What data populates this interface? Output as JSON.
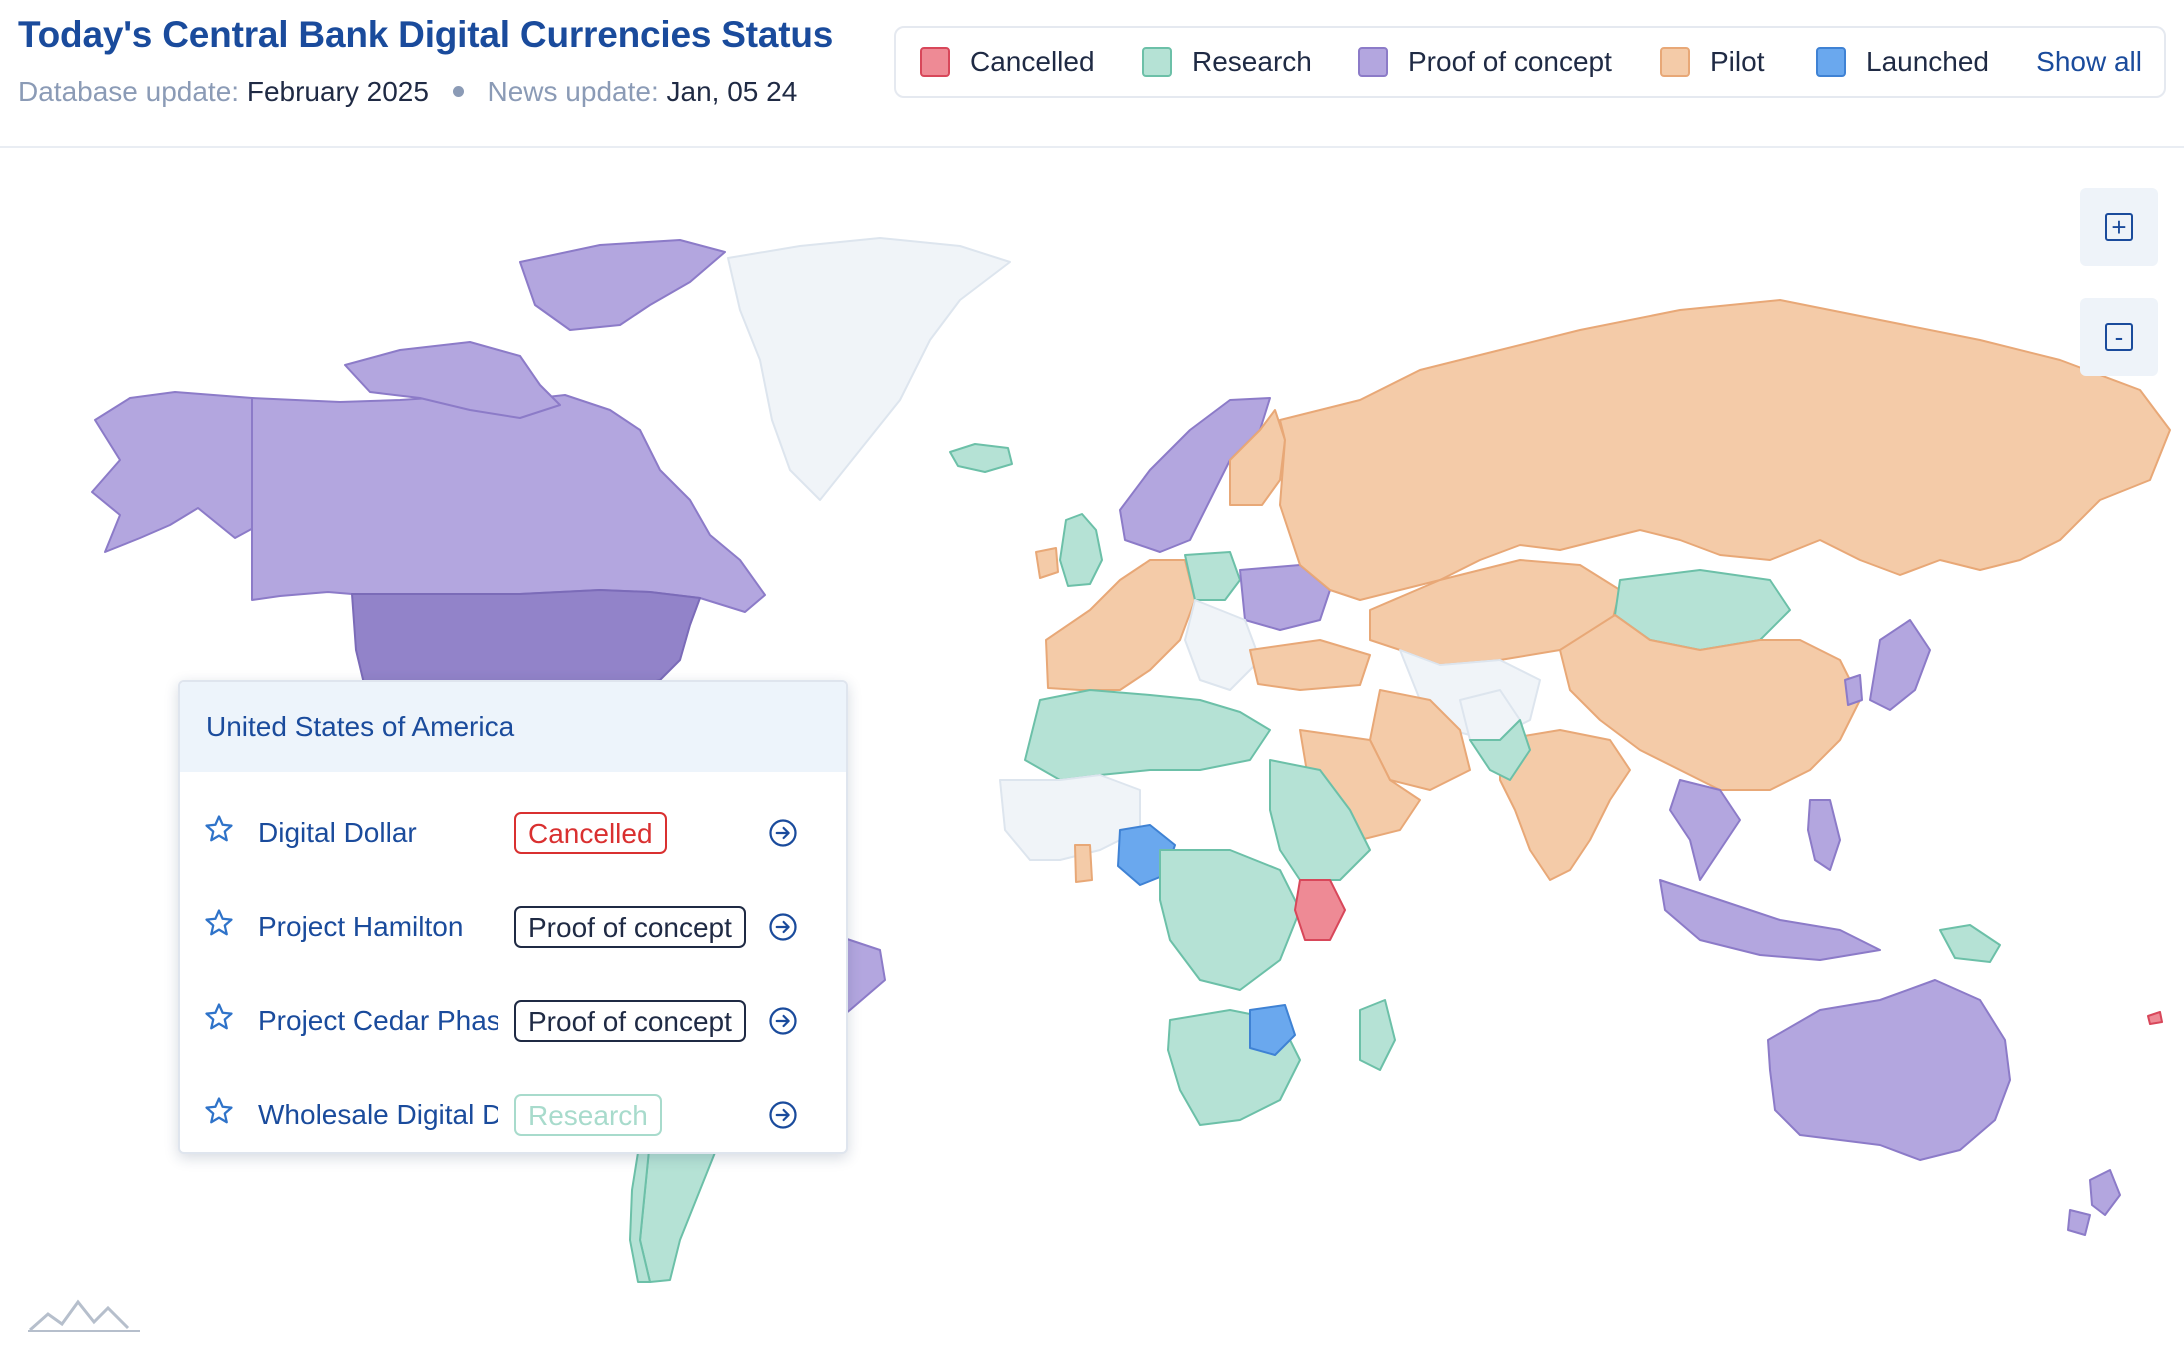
{
  "header": {
    "title": "Today's Central Bank Digital Currencies Status",
    "db_update_label": "Database update:",
    "db_update_value": "February 2025",
    "news_update_label": "News update:",
    "news_update_value": "Jan, 05 24"
  },
  "legend": {
    "items": [
      {
        "label": "Cancelled",
        "fill": "#ee8a95",
        "stroke": "#d8475a"
      },
      {
        "label": "Research",
        "fill": "#b5e2d5",
        "stroke": "#6cc0a8"
      },
      {
        "label": "Proof of concept",
        "fill": "#b3a6df",
        "stroke": "#8c7bc8"
      },
      {
        "label": "Pilot",
        "fill": "#f4cba8",
        "stroke": "#e8a877"
      },
      {
        "label": "Launched",
        "fill": "#6aa8ee",
        "stroke": "#3f82d4"
      }
    ],
    "show_all": "Show all"
  },
  "map": {
    "no_data_fill": "#f0f4f8",
    "zoom_in": "+",
    "zoom_out": "-"
  },
  "tooltip": {
    "country": "United States of America",
    "projects": [
      {
        "name": "Digital Dollar",
        "status": "Cancelled"
      },
      {
        "name": "Project Hamilton",
        "status": "Proof of concept"
      },
      {
        "name": "Project Cedar Phase",
        "status": "Proof of concept"
      },
      {
        "name": "Wholesale Digital Dollar",
        "status": "Research"
      }
    ]
  }
}
